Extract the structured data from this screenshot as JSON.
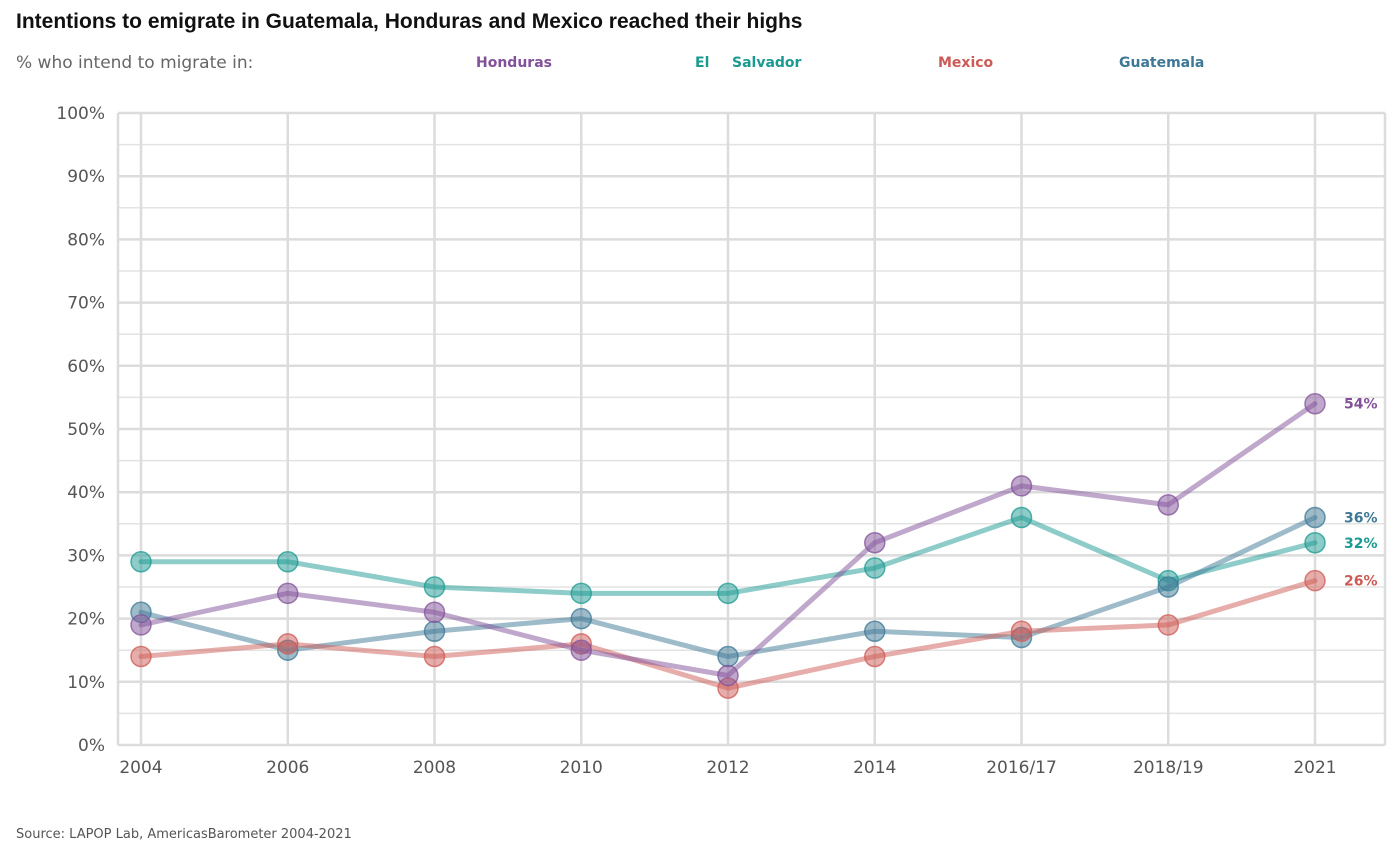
{
  "title": "Intentions to emigrate in Guatemala, Honduras and Mexico reached their highs",
  "subtitle": "% who intend to migrate in:",
  "legend": {
    "honduras": "Honduras",
    "el": "El",
    "salvador": "Salvador",
    "mexico": "Mexico",
    "guatemala": "Guatemala"
  },
  "source": "Source: LAPOP Lab, AmericasBarometer 2004-2021",
  "chart_data": {
    "type": "line",
    "title": "Intentions to emigrate in Guatemala, Honduras and Mexico reached their highs",
    "subtitle": "% who intend to migrate in:",
    "xlabel": "",
    "ylabel": "",
    "x": [
      "2004",
      "2006",
      "2008",
      "2010",
      "2012",
      "2014",
      "2016/17",
      "2018/19",
      "2021"
    ],
    "ylim": [
      0,
      100
    ],
    "yticks": [
      0,
      10,
      20,
      30,
      40,
      50,
      60,
      70,
      80,
      90,
      100
    ],
    "ytick_labels": [
      "0%",
      "10%",
      "20%",
      "30%",
      "40%",
      "50%",
      "60%",
      "70%",
      "80%",
      "90%",
      "100%"
    ],
    "grid": true,
    "legend_position": "top",
    "series": [
      {
        "name": "El Salvador",
        "color": "#1b9a91",
        "values": [
          29,
          29,
          25,
          24,
          24,
          28,
          36,
          26,
          32
        ],
        "end_label": "32%"
      },
      {
        "name": "Guatemala",
        "color": "#3d7896",
        "values": [
          21,
          15,
          18,
          20,
          14,
          18,
          17,
          25,
          36
        ],
        "end_label": "36%"
      },
      {
        "name": "Mexico",
        "color": "#cd5b55",
        "values": [
          14,
          16,
          14,
          16,
          9,
          14,
          18,
          19,
          26
        ],
        "end_label": "26%"
      },
      {
        "name": "Honduras",
        "color": "#82519a",
        "values": [
          19,
          24,
          21,
          15,
          11,
          32,
          41,
          38,
          54
        ],
        "end_label": "54%"
      }
    ]
  }
}
